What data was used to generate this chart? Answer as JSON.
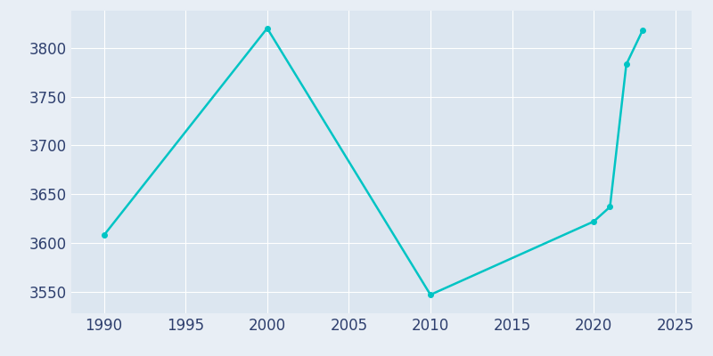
{
  "years": [
    1990,
    2000,
    2010,
    2020,
    2021,
    2022,
    2023
  ],
  "population": [
    3608,
    3820,
    3547,
    3622,
    3637,
    3783,
    3818
  ],
  "line_color": "#00C4C4",
  "fig_bg_color": "#E8EEF5",
  "plot_bg_color": "#DCE6F0",
  "xlim": [
    1988,
    2026
  ],
  "ylim": [
    3528,
    3838
  ],
  "yticks": [
    3550,
    3600,
    3650,
    3700,
    3750,
    3800
  ],
  "xticks": [
    1990,
    1995,
    2000,
    2005,
    2010,
    2015,
    2020,
    2025
  ],
  "tick_label_color": "#2E3F6E",
  "tick_label_size": 12,
  "line_width": 1.8,
  "grid_color": "#FFFFFF",
  "grid_linewidth": 0.8,
  "marker": "o",
  "marker_size": 4
}
